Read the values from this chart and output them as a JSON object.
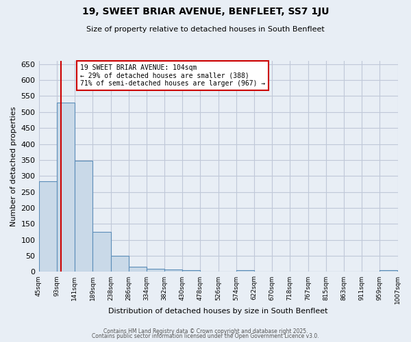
{
  "title": "19, SWEET BRIAR AVENUE, BENFLEET, SS7 1JU",
  "subtitle": "Size of property relative to detached houses in South Benfleet",
  "xlabel": "Distribution of detached houses by size in South Benfleet",
  "ylabel": "Number of detached properties",
  "bin_edges": [
    45,
    93,
    141,
    189,
    238,
    286,
    334,
    382,
    430,
    478,
    526,
    574,
    622,
    670,
    718,
    767,
    815,
    863,
    911,
    959,
    1007
  ],
  "bar_heights": [
    283,
    530,
    348,
    125,
    50,
    15,
    10,
    8,
    5,
    0,
    0,
    5,
    0,
    0,
    0,
    0,
    0,
    0,
    0,
    5
  ],
  "bar_color": "#c9d9e8",
  "bar_edge_color": "#5b8db8",
  "grid_color": "#c0c8d8",
  "bg_color": "#e8eef5",
  "red_line_x": 104,
  "annotation_line1": "19 SWEET BRIAR AVENUE: 104sqm",
  "annotation_line2": "← 29% of detached houses are smaller (388)",
  "annotation_line3": "71% of semi-detached houses are larger (967) →",
  "annotation_box_color": "#ffffff",
  "annotation_border_color": "#cc0000",
  "ylim": [
    0,
    660
  ],
  "yticks": [
    0,
    50,
    100,
    150,
    200,
    250,
    300,
    350,
    400,
    450,
    500,
    550,
    600,
    650
  ],
  "footer_line1": "Contains HM Land Registry data © Crown copyright and database right 2025.",
  "footer_line2": "Contains public sector information licensed under the Open Government Licence v3.0.",
  "tick_labels": [
    "45sqm",
    "93sqm",
    "141sqm",
    "189sqm",
    "238sqm",
    "286sqm",
    "334sqm",
    "382sqm",
    "430sqm",
    "478sqm",
    "526sqm",
    "574sqm",
    "622sqm",
    "670sqm",
    "718sqm",
    "767sqm",
    "815sqm",
    "863sqm",
    "911sqm",
    "959sqm",
    "1007sqm"
  ]
}
